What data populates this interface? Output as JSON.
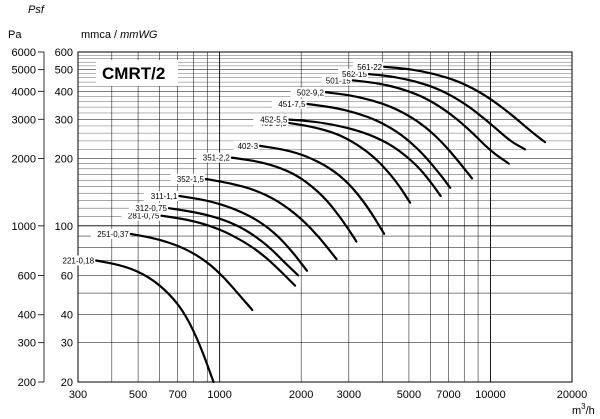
{
  "chart_data": {
    "type": "line",
    "title": "CMRT/2",
    "xscale": "log",
    "yscale": "log",
    "xlim": [
      300,
      20000
    ],
    "ylim": [
      20,
      600
    ],
    "y_axis_labels": {
      "mmca_text": "mmca / ",
      "mmwg_text": "mmWG"
    },
    "y_units_left": {
      "psf_text": "Psf",
      "pa_text": "Pa"
    },
    "x_unit": {
      "base": "m",
      "sup": "3",
      "tail": "/h"
    },
    "x_ticks": [
      300,
      500,
      700,
      1000,
      2000,
      3000,
      5000,
      7000,
      10000,
      20000
    ],
    "y_ticks_mmca": [
      20,
      30,
      40,
      60,
      100,
      200,
      300,
      400,
      500,
      600
    ],
    "pa_ticks": [
      "6000",
      "5000",
      "4000",
      "3000",
      "2000",
      "1000",
      "600",
      "400",
      "300",
      "200"
    ],
    "series": [
      {
        "name": "221-0,18",
        "x": [
          350,
          450,
          550,
          650,
          750,
          850,
          950
        ],
        "y": [
          70,
          66,
          59,
          50,
          40,
          29,
          20
        ]
      },
      {
        "name": "251-0,37",
        "x": [
          470,
          600,
          750,
          900,
          1050,
          1200,
          1320
        ],
        "y": [
          92,
          87,
          79,
          69,
          58,
          48,
          42
        ]
      },
      {
        "name": "281-0,75",
        "x": [
          610,
          750,
          900,
          1050,
          1250,
          1450,
          1650,
          1900
        ],
        "y": [
          111,
          107,
          101,
          94,
          84,
          74,
          64,
          54
        ]
      },
      {
        "name": "312-0,75",
        "x": [
          650,
          850,
          1050,
          1250,
          1500,
          1750,
          1950
        ],
        "y": [
          120,
          114,
          106,
          96,
          82,
          68,
          60
        ]
      },
      {
        "name": "311-1,1",
        "x": [
          710,
          900,
          1100,
          1350,
          1600,
          1850,
          2100
        ],
        "y": [
          136,
          130,
          121,
          108,
          93,
          77,
          63
        ]
      },
      {
        "name": "352-1,5",
        "x": [
          890,
          1100,
          1350,
          1650,
          2000,
          2350,
          2700
        ],
        "y": [
          162,
          155,
          145,
          129,
          108,
          88,
          71
        ]
      },
      {
        "name": "351-2,2",
        "x": [
          1110,
          1400,
          1700,
          2000,
          2400,
          2800,
          3200
        ],
        "y": [
          202,
          194,
          181,
          164,
          137,
          109,
          85
        ]
      },
      {
        "name": "402-3",
        "x": [
          1410,
          1750,
          2100,
          2550,
          3000,
          3500,
          4050
        ],
        "y": [
          228,
          219,
          205,
          182,
          155,
          123,
          92
        ]
      },
      {
        "name": "401-5,5",
        "x": [
          1800,
          2200,
          2700,
          3200,
          3800,
          4500,
          5050
        ],
        "y": [
          289,
          278,
          259,
          233,
          199,
          158,
          127
        ]
      },
      {
        "name": "452-5,5",
        "x": [
          1810,
          2300,
          2900,
          3600,
          4400,
          5300,
          6000,
          6550
        ],
        "y": [
          299,
          292,
          277,
          256,
          227,
          189,
          158,
          136
        ]
      },
      {
        "name": "451-7,5",
        "x": [
          2110,
          2600,
          3200,
          3900,
          4700,
          5600,
          6500,
          7100
        ],
        "y": [
          351,
          340,
          321,
          293,
          256,
          212,
          171,
          148
        ]
      },
      {
        "name": "502-9,2",
        "x": [
          2470,
          3000,
          3700,
          4500,
          5500,
          6600,
          7800,
          8550
        ],
        "y": [
          396,
          385,
          364,
          334,
          290,
          239,
          188,
          163
        ]
      },
      {
        "name": "501-15",
        "x": [
          3100,
          3800,
          4600,
          5600,
          6800,
          8300,
          10000,
          11700
        ],
        "y": [
          448,
          436,
          414,
          380,
          331,
          272,
          216,
          190
        ]
      },
      {
        "name": "562-15",
        "x": [
          3560,
          4300,
          5300,
          6500,
          8000,
          9800,
          11800,
          13400
        ],
        "y": [
          478,
          467,
          444,
          408,
          355,
          293,
          240,
          220
        ]
      },
      {
        "name": "561-22",
        "x": [
          4050,
          5000,
          6200,
          7700,
          9500,
          11700,
          14200,
          15900
        ],
        "y": [
          515,
          504,
          480,
          442,
          387,
          322,
          263,
          237
        ]
      }
    ]
  }
}
